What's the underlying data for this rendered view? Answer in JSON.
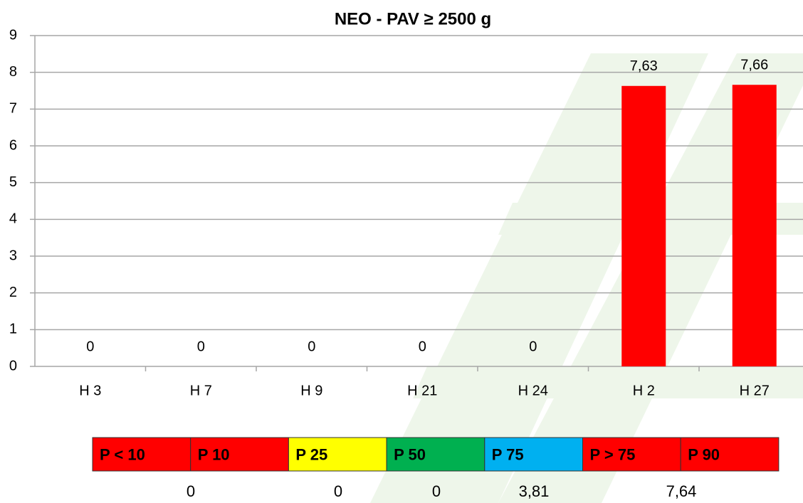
{
  "chart_data": {
    "type": "bar",
    "title": "NEO - PAV ≥ 2500 g",
    "categories": [
      "H 3",
      "H 7",
      "H 9",
      "H 21",
      "H 24",
      "H 2",
      "H 27"
    ],
    "values": [
      0,
      0,
      0,
      0,
      0,
      7.63,
      7.66
    ],
    "value_labels": [
      "0",
      "0",
      "0",
      "0",
      "0",
      "7,63",
      "7,66"
    ],
    "color": "#ff0000",
    "ylim": [
      0,
      9
    ],
    "yticks": [
      0,
      1,
      2,
      3,
      4,
      5,
      6,
      7,
      8,
      9
    ],
    "grid": true
  },
  "percentile_bar": {
    "segments": [
      {
        "label": "P < 10",
        "color": "#ff0000"
      },
      {
        "label": "P 10",
        "color": "#ff0000"
      },
      {
        "label": "P 25",
        "color": "#ffff00"
      },
      {
        "label": "P 50",
        "color": "#00b050"
      },
      {
        "label": "P 75",
        "color": "#00b0f0"
      },
      {
        "label": "P > 75",
        "color": "#ff0000"
      },
      {
        "label": "P 90",
        "color": "#ff0000"
      }
    ],
    "values": [
      "0",
      "0",
      "0",
      "3,81",
      "7,64"
    ]
  }
}
